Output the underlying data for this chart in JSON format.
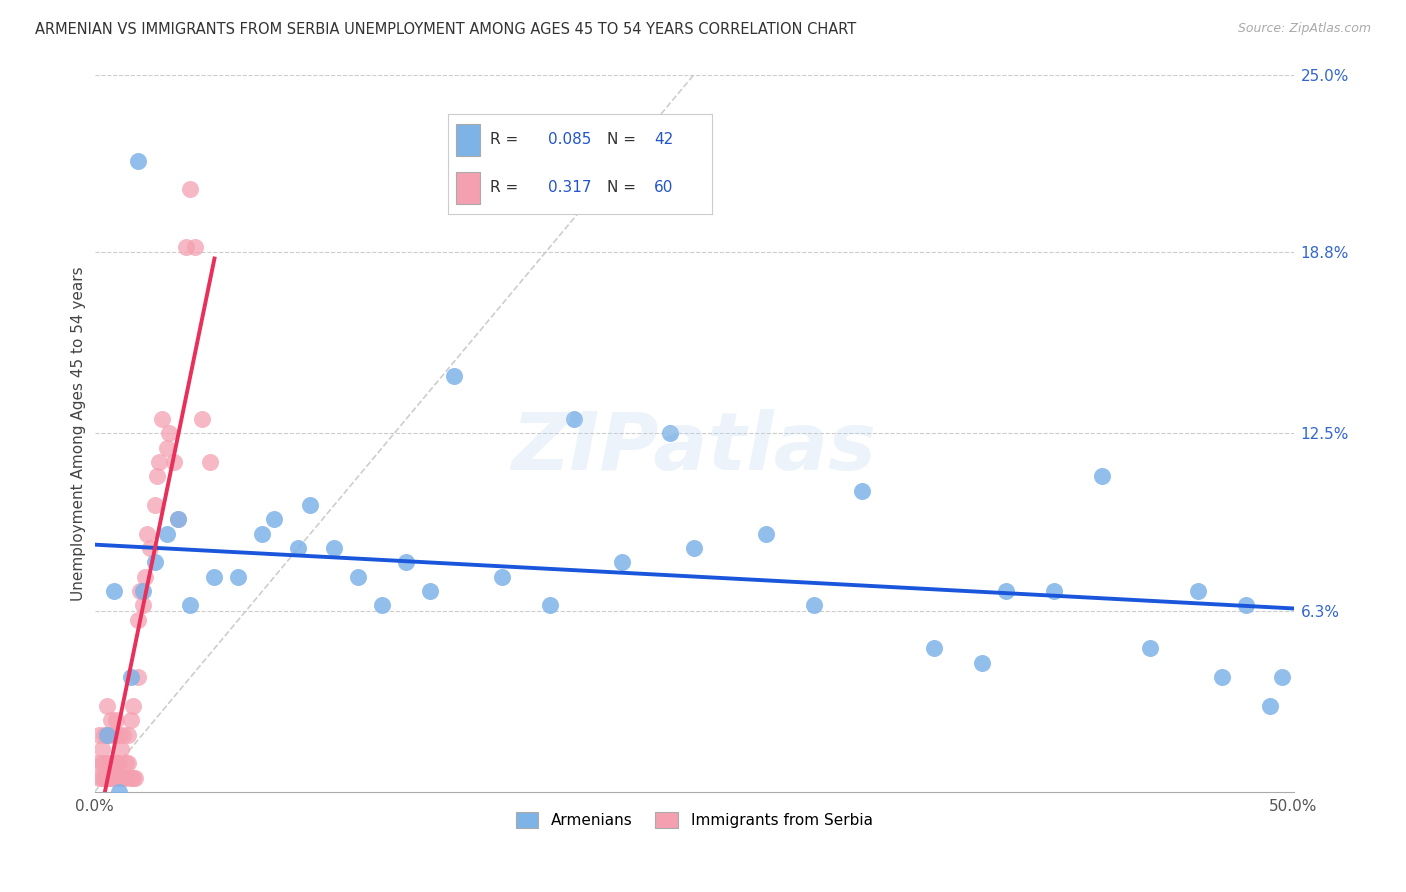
{
  "title": "ARMENIAN VS IMMIGRANTS FROM SERBIA UNEMPLOYMENT AMONG AGES 45 TO 54 YEARS CORRELATION CHART",
  "source": "Source: ZipAtlas.com",
  "ylabel": "Unemployment Among Ages 45 to 54 years",
  "xlim": [
    0,
    0.5
  ],
  "ylim": [
    0,
    0.25
  ],
  "xtick_positions": [
    0.0,
    0.5
  ],
  "xticklabels": [
    "0.0%",
    "50.0%"
  ],
  "ytick_positions": [
    0.063,
    0.125,
    0.188,
    0.25
  ],
  "yticklabels": [
    "6.3%",
    "12.5%",
    "18.8%",
    "25.0%"
  ],
  "armenian_color": "#7EB3E8",
  "serbia_color": "#F4A0B0",
  "blue_regression_color": "#1A56DB",
  "pink_regression_color": "#E8305A",
  "diagonal_color": "#C8C8C8",
  "watermark_text": "ZIPatlas",
  "legend_R1": "0.085",
  "legend_N1": "42",
  "legend_R2": "0.317",
  "legend_N2": "60",
  "armenian_x": [
    0.005,
    0.008,
    0.01,
    0.015,
    0.018,
    0.02,
    0.025,
    0.03,
    0.035,
    0.04,
    0.05,
    0.06,
    0.07,
    0.075,
    0.085,
    0.09,
    0.1,
    0.11,
    0.12,
    0.13,
    0.14,
    0.15,
    0.17,
    0.19,
    0.2,
    0.22,
    0.24,
    0.25,
    0.28,
    0.3,
    0.32,
    0.35,
    0.37,
    0.38,
    0.4,
    0.42,
    0.44,
    0.46,
    0.47,
    0.48,
    0.49,
    0.495
  ],
  "armenian_y": [
    0.02,
    0.07,
    0.0,
    0.04,
    0.22,
    0.07,
    0.08,
    0.09,
    0.095,
    0.065,
    0.075,
    0.075,
    0.09,
    0.095,
    0.085,
    0.1,
    0.085,
    0.075,
    0.065,
    0.08,
    0.07,
    0.145,
    0.075,
    0.065,
    0.13,
    0.08,
    0.125,
    0.085,
    0.09,
    0.065,
    0.105,
    0.05,
    0.045,
    0.07,
    0.07,
    0.11,
    0.05,
    0.07,
    0.04,
    0.065,
    0.03,
    0.04
  ],
  "serbia_x": [
    0.001,
    0.002,
    0.002,
    0.003,
    0.003,
    0.003,
    0.004,
    0.004,
    0.004,
    0.005,
    0.005,
    0.005,
    0.006,
    0.006,
    0.006,
    0.007,
    0.007,
    0.007,
    0.008,
    0.008,
    0.008,
    0.009,
    0.009,
    0.009,
    0.01,
    0.01,
    0.01,
    0.011,
    0.011,
    0.012,
    0.012,
    0.013,
    0.013,
    0.014,
    0.014,
    0.015,
    0.015,
    0.016,
    0.016,
    0.017,
    0.018,
    0.018,
    0.019,
    0.02,
    0.021,
    0.022,
    0.023,
    0.025,
    0.026,
    0.027,
    0.028,
    0.03,
    0.031,
    0.033,
    0.035,
    0.038,
    0.04,
    0.042,
    0.045,
    0.048
  ],
  "serbia_y": [
    0.01,
    0.02,
    0.005,
    0.01,
    0.015,
    0.005,
    0.005,
    0.01,
    0.02,
    0.005,
    0.02,
    0.03,
    0.005,
    0.01,
    0.02,
    0.005,
    0.01,
    0.025,
    0.005,
    0.01,
    0.02,
    0.005,
    0.01,
    0.025,
    0.005,
    0.01,
    0.02,
    0.005,
    0.015,
    0.005,
    0.02,
    0.005,
    0.01,
    0.01,
    0.02,
    0.005,
    0.025,
    0.005,
    0.03,
    0.005,
    0.04,
    0.06,
    0.07,
    0.065,
    0.075,
    0.09,
    0.085,
    0.1,
    0.11,
    0.115,
    0.13,
    0.12,
    0.125,
    0.115,
    0.095,
    0.19,
    0.21,
    0.19,
    0.13,
    0.115
  ]
}
